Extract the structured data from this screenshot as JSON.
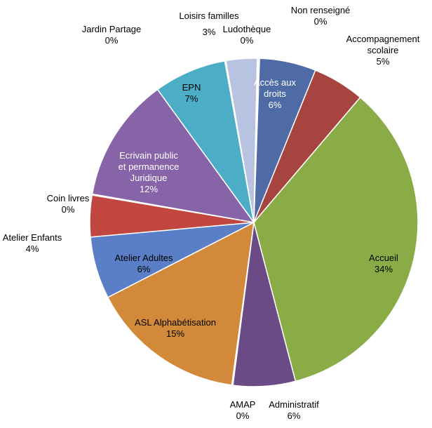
{
  "chart_data": {
    "type": "pie",
    "title": "",
    "slices": [
      {
        "label": "Accès aux droits",
        "value": 6,
        "value_label": "6%",
        "color": "#4f6ba6",
        "label_color": "#ffffff"
      },
      {
        "label": "Accompagnement scolaire",
        "value": 5,
        "value_label": "5%",
        "color": "#a8443f",
        "label_color": "#000000"
      },
      {
        "label": "Accueil",
        "value": 34,
        "value_label": "34%",
        "color": "#8aac47",
        "label_color": "#000000"
      },
      {
        "label": "Administratif",
        "value": 6,
        "value_label": "6%",
        "color": "#6a4b86",
        "label_color": "#000000"
      },
      {
        "label": "AMAP",
        "value": 0,
        "value_label": "0%",
        "color": "#c9833a",
        "label_color": "#000000"
      },
      {
        "label": "ASL Alphabétisation",
        "value": 15,
        "value_label": "15%",
        "color": "#d28a3a",
        "label_color": "#000000"
      },
      {
        "label": "Atelier Adultes",
        "value": 6,
        "value_label": "6%",
        "color": "#5b7fc7",
        "label_color": "#000000"
      },
      {
        "label": "Atelier Enfants",
        "value": 4,
        "value_label": "4%",
        "color": "#c0463f",
        "label_color": "#000000"
      },
      {
        "label": "Coin livres",
        "value": 0,
        "value_label": "0%",
        "color": "#9dbb58",
        "label_color": "#000000"
      },
      {
        "label": "Ecrivain public et permanence Juridique",
        "value": 12,
        "value_label": "12%",
        "color": "#8763a8",
        "label_color": "#ffffff"
      },
      {
        "label": "EPN",
        "value": 7,
        "value_label": "7%",
        "color": "#4cadc6",
        "label_color": "#000000"
      },
      {
        "label": "Jardin Partage",
        "value": 0,
        "value_label": "0%",
        "color": "#f0993e",
        "label_color": "#000000"
      },
      {
        "label": "Loisirs familles",
        "value": 3,
        "value_label": "3%",
        "color": "#b7c3e0",
        "label_color": "#000000"
      },
      {
        "label": "Ludothèque",
        "value": 0,
        "value_label": "0%",
        "color": "#e6b8b7",
        "label_color": "#000000"
      },
      {
        "label": "Non renseigné",
        "value": 0,
        "value_label": "0%",
        "color": "#d7e4bd",
        "label_color": "#000000"
      }
    ]
  }
}
